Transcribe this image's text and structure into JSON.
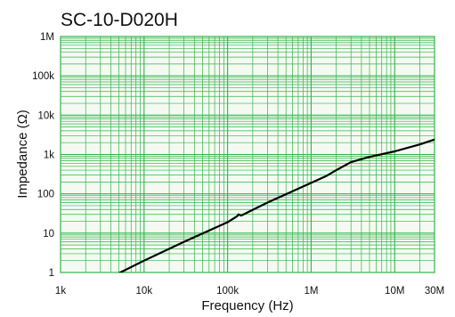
{
  "chart_data": {
    "type": "line",
    "title": "SC-10-D020H",
    "xlabel": "Frequency (Hz)",
    "ylabel": "Impedance (Ω)",
    "x_scale": "log",
    "y_scale": "log",
    "xlim": [
      1000,
      30000000
    ],
    "ylim": [
      1,
      1000000
    ],
    "grid": true,
    "x_tick_values": [
      1000,
      10000,
      100000,
      1000000,
      10000000,
      30000000
    ],
    "x_tick_labels": [
      "1k",
      "10k",
      "100k",
      "1M",
      "10M",
      "30M"
    ],
    "y_tick_values": [
      1,
      10,
      100,
      1000,
      10000,
      100000,
      1000000
    ],
    "y_tick_labels": [
      "1",
      "10",
      "100",
      "1k",
      "10k",
      "100k",
      "1M"
    ],
    "series": [
      {
        "name": "",
        "color": "#000000",
        "points": [
          [
            4200,
            0.8
          ],
          [
            10000,
            2.0
          ],
          [
            30000,
            6.0
          ],
          [
            100000,
            19
          ],
          [
            130000,
            27
          ],
          [
            135000,
            30
          ],
          [
            145000,
            28
          ],
          [
            300000,
            60
          ],
          [
            1000000,
            190
          ],
          [
            1500000,
            280
          ],
          [
            2000000,
            400
          ],
          [
            3000000,
            640
          ],
          [
            5000000,
            870
          ],
          [
            10000000,
            1200
          ],
          [
            20000000,
            1800
          ],
          [
            30000000,
            2400
          ]
        ]
      }
    ]
  },
  "colors": {
    "plot_background": "#f4faf2",
    "grid": "#34b34a",
    "curve": "#000000",
    "text": "#111111"
  }
}
